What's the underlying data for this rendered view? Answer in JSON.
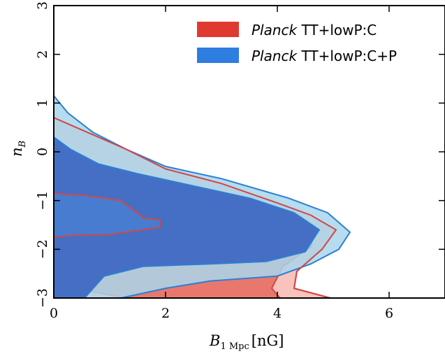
{
  "chart_data": {
    "type": "area",
    "xlabel_main": "B",
    "xlabel_sub": "1 Mpc",
    "xlabel_unit": "[nG]",
    "ylabel_main": "n",
    "ylabel_sub": "B",
    "xlim": [
      0,
      7
    ],
    "ylim": [
      -3,
      3
    ],
    "xticks": [
      0,
      2,
      4,
      6
    ],
    "yticks": [
      -3,
      -2,
      -1,
      0,
      1,
      2,
      3
    ],
    "xtick_labels": [
      "0",
      "2",
      "4",
      "6"
    ],
    "ytick_labels": [
      "−3",
      "−2",
      "−1",
      "0",
      "1",
      "2",
      "3"
    ],
    "grid": false,
    "legend_position": "top-right",
    "series": [
      {
        "name_italic": "Planck",
        "name_rest": " TT+lowP:C",
        "fill_1sigma": "#e8786d",
        "fill_2sigma": "#f7c3bc",
        "stroke": "#d04848",
        "legend_color": "#e03a30",
        "contour_68": [
          [
            0.0,
            -1.75
          ],
          [
            0.3,
            -1.82
          ],
          [
            1.0,
            -1.85
          ],
          [
            2.0,
            -1.8
          ],
          [
            3.0,
            -1.78
          ],
          [
            4.2,
            -1.68
          ],
          [
            4.65,
            -1.72
          ],
          [
            4.6,
            -1.95
          ],
          [
            4.1,
            -2.35
          ],
          [
            3.9,
            -2.8
          ],
          [
            4.05,
            -3.0
          ],
          [
            1.3,
            -3.0
          ],
          [
            0.6,
            -2.85
          ],
          [
            0.3,
            -2.75
          ],
          [
            0.0,
            -2.75
          ]
        ],
        "contour_95": [
          [
            0.0,
            0.7
          ],
          [
            0.3,
            0.55
          ],
          [
            0.7,
            0.35
          ],
          [
            1.3,
            0.05
          ],
          [
            2.0,
            -0.35
          ],
          [
            3.0,
            -0.65
          ],
          [
            4.0,
            -1.05
          ],
          [
            4.6,
            -1.3
          ],
          [
            5.05,
            -1.6
          ],
          [
            4.8,
            -2.0
          ],
          [
            4.35,
            -2.45
          ],
          [
            4.3,
            -2.8
          ],
          [
            4.95,
            -3.0
          ],
          [
            0.0,
            -3.0
          ]
        ],
        "contour_68_upper": [
          [
            0.0,
            -0.85
          ],
          [
            0.6,
            -0.9
          ],
          [
            1.2,
            -1.0
          ],
          [
            1.6,
            -1.35
          ],
          [
            1.9,
            -1.4
          ],
          [
            1.9,
            -1.55
          ],
          [
            1.0,
            -1.7
          ],
          [
            0.3,
            -1.72
          ],
          [
            0.0,
            -1.75
          ]
        ]
      },
      {
        "name_italic": "Planck",
        "name_rest": " TT+lowP:C+P",
        "fill_1sigma": "#3561c0",
        "fill_2sigma": "#a9d6ec",
        "stroke": "#2b7fd4",
        "legend_color": "#2e7de0",
        "contour_68": [
          [
            0.0,
            0.3
          ],
          [
            0.3,
            0.05
          ],
          [
            0.8,
            -0.25
          ],
          [
            1.5,
            -0.45
          ],
          [
            2.5,
            -0.7
          ],
          [
            3.5,
            -0.95
          ],
          [
            4.3,
            -1.25
          ],
          [
            4.75,
            -1.6
          ],
          [
            4.5,
            -2.05
          ],
          [
            3.8,
            -2.25
          ],
          [
            2.8,
            -2.3
          ],
          [
            1.6,
            -2.35
          ],
          [
            0.9,
            -2.55
          ],
          [
            0.55,
            -3.0
          ],
          [
            0.0,
            -3.0
          ]
        ],
        "contour_95": [
          [
            0.0,
            1.15
          ],
          [
            0.25,
            0.8
          ],
          [
            0.7,
            0.4
          ],
          [
            1.3,
            0.05
          ],
          [
            2.0,
            -0.3
          ],
          [
            3.0,
            -0.55
          ],
          [
            4.2,
            -0.95
          ],
          [
            4.9,
            -1.25
          ],
          [
            5.3,
            -1.65
          ],
          [
            5.1,
            -2.0
          ],
          [
            4.6,
            -2.3
          ],
          [
            4.0,
            -2.55
          ],
          [
            2.8,
            -2.65
          ],
          [
            2.0,
            -2.8
          ],
          [
            1.2,
            -3.0
          ],
          [
            0.0,
            -3.0
          ]
        ]
      }
    ]
  }
}
